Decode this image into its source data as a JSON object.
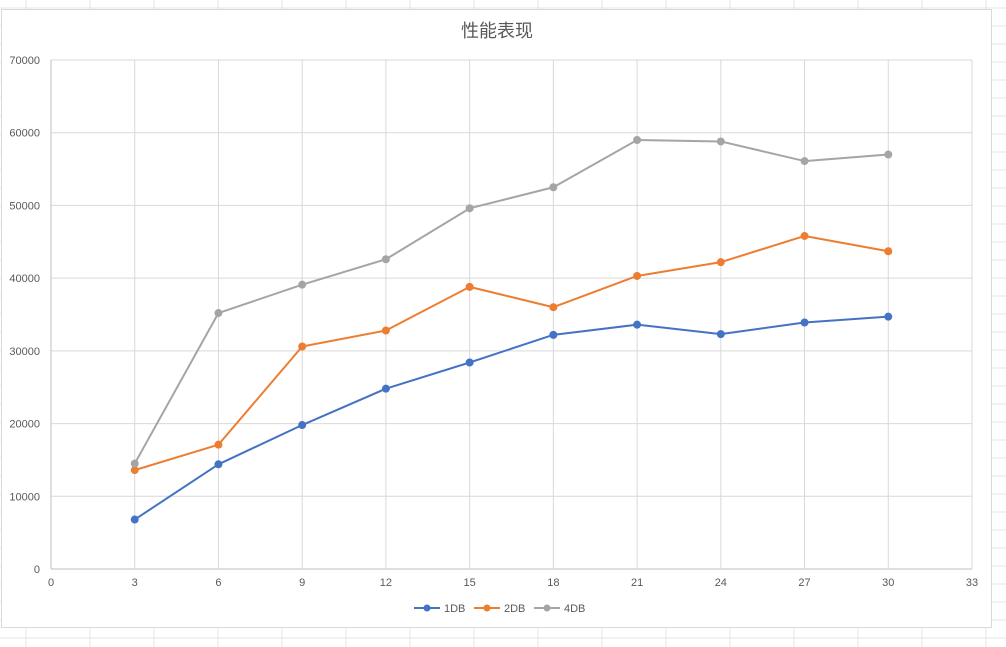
{
  "chart_data": {
    "type": "line",
    "title": "性能表现",
    "xlabel": "",
    "ylabel": "",
    "xlim": [
      0,
      33
    ],
    "ylim": [
      0,
      70000
    ],
    "x_ticks": [
      "0",
      "3",
      "6",
      "9",
      "12",
      "15",
      "18",
      "21",
      "24",
      "27",
      "30",
      "33"
    ],
    "y_ticks": [
      "0",
      "10000",
      "20000",
      "30000",
      "40000",
      "50000",
      "60000",
      "70000"
    ],
    "grid": true,
    "legend_position": "bottom",
    "x": [
      3,
      6,
      9,
      12,
      15,
      18,
      21,
      24,
      27,
      30
    ],
    "series": [
      {
        "name": "1DB",
        "color": "#4472c4",
        "values": [
          6800,
          14400,
          19800,
          24800,
          28400,
          32200,
          33600,
          32300,
          33900,
          34700
        ]
      },
      {
        "name": "2DB",
        "color": "#ed7d31",
        "values": [
          13600,
          17100,
          30600,
          32800,
          38800,
          36000,
          40300,
          42200,
          45800,
          43700
        ]
      },
      {
        "name": "4DB",
        "color": "#a5a5a5",
        "values": [
          14500,
          35200,
          39100,
          42600,
          49600,
          52500,
          59000,
          58800,
          56100,
          57000
        ]
      }
    ]
  }
}
